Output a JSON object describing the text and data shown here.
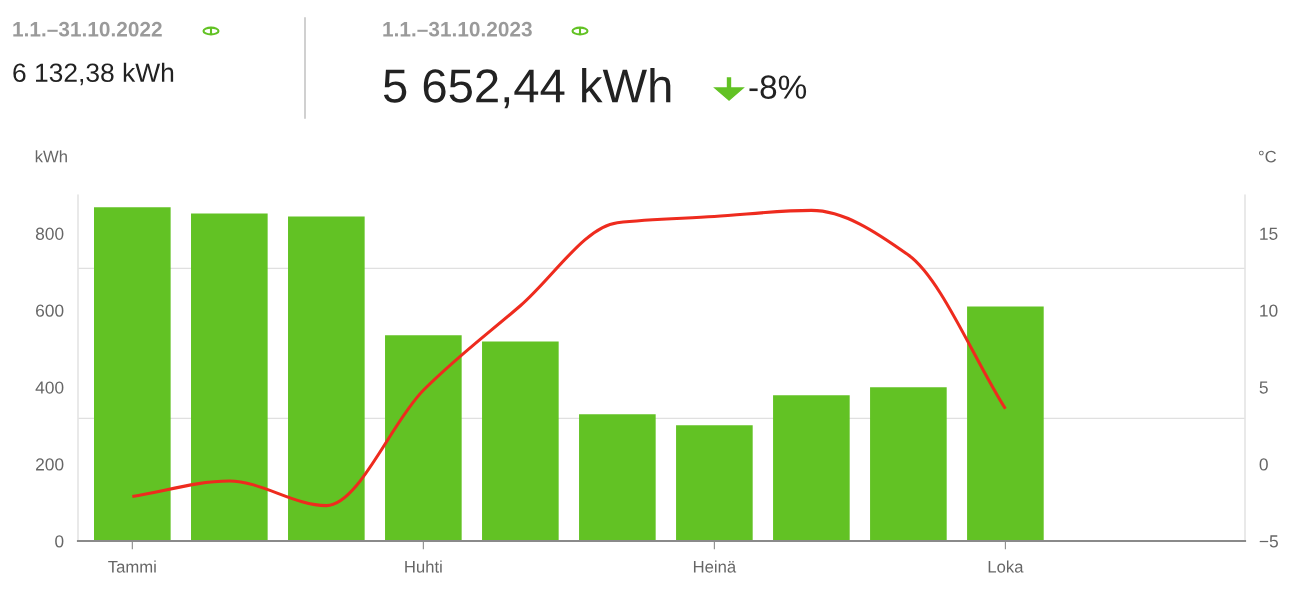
{
  "chart_data": {
    "type": "bar",
    "annotations": [
      "1.1.–31.10.2022",
      "6 132,38 kWh",
      "1.1.–31.10.2023",
      "5 652,44 kWh",
      "-8%"
    ],
    "ylabel": "kWh",
    "y2label": "°C",
    "categories": [
      "Tammi",
      null,
      null,
      "Huhti",
      null,
      null,
      "Heinä",
      null,
      null,
      "Loka",
      null,
      null
    ],
    "series": [
      {
        "color": "#62c224",
        "values": [
          868,
          852,
          844,
          535,
          519,
          330,
          301,
          379,
          400,
          610,
          null,
          null
        ]
      },
      {
        "type": "line",
        "axis": "y2",
        "color": "#ee2b1e",
        "marker": "none",
        "line_style": "solid",
        "values": [
          -2.1,
          -1.1,
          -2.7,
          4.8,
          10.3,
          15.7,
          16.1,
          16.5,
          13.6,
          3.6,
          null,
          null
        ]
      }
    ],
    "ylim": [
      0,
      900
    ],
    "yticks": [
      0,
      200,
      400,
      600,
      800
    ],
    "y2lim": [
      -5,
      17.5
    ],
    "y2ticks": [
      -5,
      0,
      5,
      10,
      15
    ],
    "ref_lines": [
      {
        "axis": "y",
        "value": 709,
        "color": "#e0e0e0"
      },
      {
        "axis": "y",
        "value": 319,
        "color": "#e0e0e0"
      }
    ],
    "grid": false,
    "legend": false
  }
}
